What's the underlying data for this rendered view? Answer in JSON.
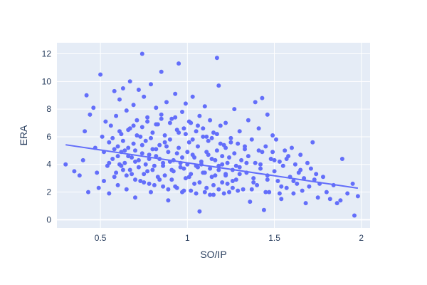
{
  "chart_data": {
    "type": "scatter",
    "title": "",
    "xlabel": "SO/IP",
    "ylabel": "ERA",
    "xlim": [
      0.25,
      2.05
    ],
    "ylim": [
      -0.6,
      12.8
    ],
    "x_ticks": [
      0.5,
      1,
      1.5,
      2
    ],
    "x_tick_labels": [
      "0.5",
      "1",
      "1.5",
      "2"
    ],
    "y_ticks": [
      0,
      2,
      4,
      6,
      8,
      10,
      12
    ],
    "y_tick_labels": [
      "0",
      "2",
      "4",
      "6",
      "8",
      "10",
      "12"
    ],
    "grid": true,
    "legend": "none",
    "marker_color": "#636efa",
    "plot_bg_color": "#e5ecf6",
    "trendline": {
      "x": [
        0.3,
        1.98
      ],
      "y": [
        5.42,
        2.28
      ]
    },
    "series": [
      {
        "points": [
          [
            0.3,
            4.0
          ],
          [
            0.35,
            3.5
          ],
          [
            0.38,
            3.2
          ],
          [
            0.4,
            4.3
          ],
          [
            0.41,
            6.4
          ],
          [
            0.42,
            9.0
          ],
          [
            0.43,
            2.0
          ],
          [
            0.44,
            7.6
          ],
          [
            0.46,
            8.1
          ],
          [
            0.47,
            5.2
          ],
          [
            0.48,
            3.4
          ],
          [
            0.49,
            2.3
          ],
          [
            0.5,
            10.5
          ],
          [
            0.51,
            6.0
          ],
          [
            0.52,
            4.9
          ],
          [
            0.52,
            2.8
          ],
          [
            0.53,
            7.1
          ],
          [
            0.54,
            3.9
          ],
          [
            0.55,
            5.6
          ],
          [
            0.55,
            1.9
          ],
          [
            0.56,
            6.8
          ],
          [
            0.57,
            4.4
          ],
          [
            0.58,
            9.3
          ],
          [
            0.58,
            3.1
          ],
          [
            0.59,
            7.5
          ],
          [
            0.6,
            5.3
          ],
          [
            0.6,
            2.5
          ],
          [
            0.61,
            8.7
          ],
          [
            0.61,
            4.0
          ],
          [
            0.62,
            6.2
          ],
          [
            0.63,
            3.6
          ],
          [
            0.63,
            9.5
          ],
          [
            0.64,
            5.0
          ],
          [
            0.65,
            7.9
          ],
          [
            0.65,
            2.2
          ],
          [
            0.66,
            4.6
          ],
          [
            0.67,
            10.0
          ],
          [
            0.67,
            6.6
          ],
          [
            0.68,
            3.3
          ],
          [
            0.69,
            8.3
          ],
          [
            0.69,
            5.5
          ],
          [
            0.7,
            4.2
          ],
          [
            0.7,
            1.6
          ],
          [
            0.71,
            7.2
          ],
          [
            0.72,
            9.4
          ],
          [
            0.72,
            3.8
          ],
          [
            0.73,
            6.0
          ],
          [
            0.74,
            12.0
          ],
          [
            0.74,
            4.8
          ],
          [
            0.75,
            2.7
          ],
          [
            0.75,
            8.9
          ],
          [
            0.76,
            5.7
          ],
          [
            0.77,
            3.5
          ],
          [
            0.77,
            7.4
          ],
          [
            0.78,
            4.4
          ],
          [
            0.79,
            9.8
          ],
          [
            0.79,
            2.0
          ],
          [
            0.8,
            6.3
          ],
          [
            0.8,
            5.1
          ],
          [
            0.81,
            3.9
          ],
          [
            0.82,
            8.1
          ],
          [
            0.82,
            4.6
          ],
          [
            0.83,
            6.9
          ],
          [
            0.84,
            2.9
          ],
          [
            0.84,
            5.4
          ],
          [
            0.85,
            10.7
          ],
          [
            0.85,
            7.6
          ],
          [
            0.86,
            4.1
          ],
          [
            0.87,
            3.2
          ],
          [
            0.87,
            6.1
          ],
          [
            0.88,
            8.5
          ],
          [
            0.89,
            4.9
          ],
          [
            0.89,
            1.4
          ],
          [
            0.9,
            5.8
          ],
          [
            0.91,
            3.6
          ],
          [
            0.91,
            7.3
          ],
          [
            0.92,
            4.3
          ],
          [
            0.93,
            9.1
          ],
          [
            0.93,
            2.4
          ],
          [
            0.94,
            6.5
          ],
          [
            0.95,
            11.3
          ],
          [
            0.95,
            5.2
          ],
          [
            0.96,
            3.8
          ],
          [
            0.97,
            7.8
          ],
          [
            0.97,
            4.5
          ],
          [
            0.98,
            2.1
          ],
          [
            0.99,
            6.2
          ],
          [
            0.99,
            8.4
          ],
          [
            1.0,
            4.0
          ],
          [
            1.01,
            5.6
          ],
          [
            1.01,
            3.1
          ],
          [
            1.02,
            7.0
          ],
          [
            1.03,
            8.9
          ],
          [
            1.03,
            4.7
          ],
          [
            1.04,
            2.6
          ],
          [
            1.05,
            6.4
          ],
          [
            1.05,
            3.9
          ],
          [
            1.06,
            5.3
          ],
          [
            1.07,
            0.6
          ],
          [
            1.07,
            7.5
          ],
          [
            1.08,
            4.2
          ],
          [
            1.09,
            3.4
          ],
          [
            1.09,
            6.0
          ],
          [
            1.1,
            8.2
          ],
          [
            1.11,
            4.9
          ],
          [
            1.11,
            2.3
          ],
          [
            1.12,
            5.7
          ],
          [
            1.13,
            3.7
          ],
          [
            1.13,
            7.2
          ],
          [
            1.14,
            4.4
          ],
          [
            1.15,
            1.8
          ],
          [
            1.15,
            6.3
          ],
          [
            1.16,
            3.2
          ],
          [
            1.17,
            11.7
          ],
          [
            1.17,
            5.0
          ],
          [
            1.18,
            9.7
          ],
          [
            1.18,
            3.9
          ],
          [
            1.19,
            6.8
          ],
          [
            1.2,
            2.7
          ],
          [
            1.2,
            4.6
          ],
          [
            1.21,
            5.4
          ],
          [
            1.22,
            3.3
          ],
          [
            1.22,
            7.0
          ],
          [
            1.23,
            4.1
          ],
          [
            1.24,
            2.0
          ],
          [
            1.25,
            5.9
          ],
          [
            1.26,
            3.6
          ],
          [
            1.27,
            8.0
          ],
          [
            1.27,
            4.8
          ],
          [
            1.28,
            2.9
          ],
          [
            1.29,
            5.5
          ],
          [
            1.3,
            3.8
          ],
          [
            1.3,
            6.4
          ],
          [
            1.31,
            4.3
          ],
          [
            1.32,
            2.2
          ],
          [
            1.33,
            5.1
          ],
          [
            1.34,
            3.4
          ],
          [
            1.35,
            7.2
          ],
          [
            1.35,
            4.6
          ],
          [
            1.36,
            1.3
          ],
          [
            1.37,
            5.8
          ],
          [
            1.38,
            3.0
          ],
          [
            1.39,
            8.5
          ],
          [
            1.39,
            4.1
          ],
          [
            1.4,
            2.5
          ],
          [
            1.41,
            6.6
          ],
          [
            1.42,
            3.7
          ],
          [
            1.43,
            8.8
          ],
          [
            1.43,
            4.9
          ],
          [
            1.44,
            0.7
          ],
          [
            1.45,
            5.3
          ],
          [
            1.46,
            3.2
          ],
          [
            1.46,
            7.6
          ],
          [
            1.47,
            2.0
          ],
          [
            1.48,
            4.4
          ],
          [
            1.49,
            6.1
          ],
          [
            1.5,
            3.5
          ],
          [
            1.51,
            5.8
          ],
          [
            1.52,
            2.8
          ],
          [
            1.53,
            4.2
          ],
          [
            1.54,
            1.5
          ],
          [
            1.55,
            3.9
          ],
          [
            1.56,
            5.0
          ],
          [
            1.57,
            2.3
          ],
          [
            1.58,
            4.6
          ],
          [
            1.59,
            3.1
          ],
          [
            1.6,
            5.2
          ],
          [
            1.61,
            1.9
          ],
          [
            1.62,
            4.0
          ],
          [
            1.63,
            2.6
          ],
          [
            1.64,
            3.4
          ],
          [
            1.65,
            4.7
          ],
          [
            1.66,
            2.1
          ],
          [
            1.67,
            3.0
          ],
          [
            1.68,
            1.2
          ],
          [
            1.69,
            4.1
          ],
          [
            1.7,
            2.4
          ],
          [
            1.71,
            3.7
          ],
          [
            1.72,
            5.6
          ],
          [
            1.73,
            2.9
          ],
          [
            1.74,
            3.3
          ],
          [
            1.75,
            1.6
          ],
          [
            1.76,
            2.6
          ],
          [
            1.78,
            3.1
          ],
          [
            1.8,
            2.0
          ],
          [
            1.82,
            1.5
          ],
          [
            1.84,
            2.5
          ],
          [
            1.86,
            1.2
          ],
          [
            1.88,
            1.4
          ],
          [
            1.89,
            4.4
          ],
          [
            1.92,
            1.9
          ],
          [
            1.95,
            2.6
          ],
          [
            1.96,
            0.3
          ],
          [
            1.98,
            1.7
          ],
          [
            0.6,
            4.6
          ],
          [
            0.62,
            4.9
          ],
          [
            0.64,
            4.1
          ],
          [
            0.66,
            5.2
          ],
          [
            0.68,
            4.5
          ],
          [
            0.7,
            5.0
          ],
          [
            0.72,
            4.3
          ],
          [
            0.74,
            5.4
          ],
          [
            0.76,
            4.0
          ],
          [
            0.78,
            4.7
          ],
          [
            0.8,
            3.6
          ],
          [
            0.82,
            5.1
          ],
          [
            0.84,
            4.4
          ],
          [
            0.86,
            3.9
          ],
          [
            0.88,
            5.3
          ],
          [
            0.9,
            4.2
          ],
          [
            0.92,
            3.5
          ],
          [
            0.94,
            4.8
          ],
          [
            0.96,
            4.1
          ],
          [
            0.98,
            3.7
          ],
          [
            1.0,
            4.9
          ],
          [
            1.02,
            3.3
          ],
          [
            1.04,
            4.5
          ],
          [
            1.06,
            3.8
          ],
          [
            1.08,
            4.0
          ],
          [
            1.1,
            3.4
          ],
          [
            1.12,
            4.7
          ],
          [
            1.14,
            3.1
          ],
          [
            1.16,
            4.3
          ],
          [
            1.18,
            3.6
          ],
          [
            1.2,
            4.0
          ],
          [
            1.22,
            3.2
          ],
          [
            1.24,
            4.5
          ],
          [
            1.26,
            2.8
          ],
          [
            1.28,
            3.9
          ],
          [
            1.3,
            3.3
          ],
          [
            0.63,
            5.7
          ],
          [
            0.67,
            3.6
          ],
          [
            0.71,
            6.1
          ],
          [
            0.75,
            3.3
          ],
          [
            0.79,
            5.9
          ],
          [
            0.83,
            3.1
          ],
          [
            0.87,
            5.6
          ],
          [
            0.91,
            2.9
          ],
          [
            0.95,
            6.3
          ],
          [
            0.99,
            3.0
          ],
          [
            1.03,
            5.8
          ],
          [
            1.07,
            2.7
          ],
          [
            1.11,
            6.0
          ],
          [
            1.15,
            2.5
          ],
          [
            1.19,
            5.5
          ],
          [
            1.23,
            2.6
          ],
          [
            0.58,
            5.1
          ],
          [
            0.62,
            3.9
          ],
          [
            0.66,
            6.5
          ],
          [
            0.7,
            2.9
          ],
          [
            0.74,
            6.7
          ],
          [
            0.78,
            2.6
          ],
          [
            0.82,
            6.9
          ],
          [
            0.86,
            2.4
          ],
          [
            0.9,
            7.0
          ],
          [
            0.94,
            2.3
          ],
          [
            0.98,
            6.6
          ],
          [
            1.02,
            2.1
          ],
          [
            1.06,
            6.8
          ],
          [
            1.1,
            2.0
          ],
          [
            1.14,
            5.9
          ],
          [
            1.18,
            2.2
          ],
          [
            1.22,
            5.2
          ],
          [
            1.26,
            2.3
          ],
          [
            1.34,
            4.1
          ],
          [
            1.38,
            2.7
          ],
          [
            1.42,
            4.0
          ],
          [
            1.46,
            2.9
          ],
          [
            1.5,
            4.3
          ],
          [
            1.54,
            2.4
          ],
          [
            0.55,
            4.1
          ],
          [
            0.57,
            5.9
          ],
          [
            0.59,
            3.4
          ],
          [
            0.61,
            6.4
          ],
          [
            0.65,
            3.2
          ],
          [
            0.69,
            6.8
          ],
          [
            0.73,
            2.8
          ],
          [
            0.77,
            7.1
          ],
          [
            0.81,
            2.5
          ],
          [
            0.85,
            7.3
          ],
          [
            0.89,
            2.2
          ],
          [
            0.93,
            7.4
          ],
          [
            0.97,
            2.0
          ],
          [
            1.01,
            7.1
          ],
          [
            1.05,
            1.9
          ],
          [
            1.09,
            6.6
          ],
          [
            1.13,
            1.8
          ],
          [
            1.17,
            6.2
          ],
          [
            1.21,
            1.9
          ],
          [
            1.25,
            5.6
          ],
          [
            1.29,
            2.1
          ],
          [
            1.33,
            5.3
          ],
          [
            1.37,
            2.2
          ],
          [
            1.41,
            5.0
          ],
          [
            1.45,
            2.0
          ],
          [
            1.49,
            4.9
          ],
          [
            1.53,
            1.9
          ],
          [
            1.57,
            4.4
          ],
          [
            1.61,
            2.8
          ],
          [
            1.65,
            3.6
          ]
        ]
      }
    ]
  }
}
